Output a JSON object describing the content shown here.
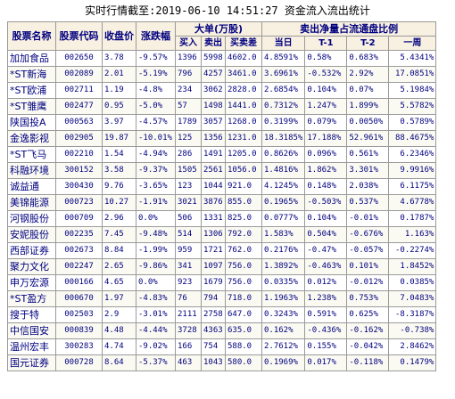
{
  "title": "实时行情截至:2019-06-10 14:51:27 资金流入流出统计",
  "headers": {
    "name": "股票名称",
    "code": "股票代码",
    "price": "收盘价",
    "change": "涨跌幅",
    "big_order_group": "大单(万股)",
    "buy": "买入",
    "sell": "卖出",
    "diff": "买卖差",
    "ratio_group": "卖出净量占流通盘比例",
    "today": "当日",
    "t1": "T-1",
    "t2": "T-2",
    "week": "一周"
  },
  "rows": [
    {
      "name": "加加食品",
      "code": "002650",
      "price": "3.78",
      "change": "-9.57%",
      "buy": "1396",
      "sell": "5998",
      "diff": "4602.0",
      "today": "4.8591%",
      "t1": "0.58%",
      "t2": "0.683%",
      "week": "5.4341%"
    },
    {
      "name": "*ST新海",
      "code": "002089",
      "price": "2.01",
      "change": "-5.19%",
      "buy": "796",
      "sell": "4257",
      "diff": "3461.0",
      "today": "3.6961%",
      "t1": "-0.532%",
      "t2": "2.92%",
      "week": "17.0851%"
    },
    {
      "name": "*ST欧浦",
      "code": "002711",
      "price": "1.19",
      "change": "-4.8%",
      "buy": "234",
      "sell": "3062",
      "diff": "2828.0",
      "today": "2.6854%",
      "t1": "0.104%",
      "t2": "0.07%",
      "week": "5.1984%"
    },
    {
      "name": "*ST雏鹰",
      "code": "002477",
      "price": "0.95",
      "change": "-5.0%",
      "buy": "57",
      "sell": "1498",
      "diff": "1441.0",
      "today": "0.7312%",
      "t1": "1.247%",
      "t2": "1.899%",
      "week": "5.5782%"
    },
    {
      "name": "陕国投A",
      "code": "000563",
      "price": "3.97",
      "change": "-4.57%",
      "buy": "1789",
      "sell": "3057",
      "diff": "1268.0",
      "today": "0.3199%",
      "t1": "0.079%",
      "t2": "0.0050%",
      "week": "0.5789%"
    },
    {
      "name": "金逸影视",
      "code": "002905",
      "price": "19.87",
      "change": "-10.01%",
      "buy": "125",
      "sell": "1356",
      "diff": "1231.0",
      "today": "18.3185%",
      "t1": "17.188%",
      "t2": "52.961%",
      "week": "88.4675%"
    },
    {
      "name": "*ST飞马",
      "code": "002210",
      "price": "1.54",
      "change": "-4.94%",
      "buy": "286",
      "sell": "1491",
      "diff": "1205.0",
      "today": "0.8626%",
      "t1": "0.096%",
      "t2": "0.561%",
      "week": "6.2346%"
    },
    {
      "name": "科融环境",
      "code": "300152",
      "price": "3.58",
      "change": "-9.37%",
      "buy": "1505",
      "sell": "2561",
      "diff": "1056.0",
      "today": "1.4816%",
      "t1": "1.862%",
      "t2": "3.301%",
      "week": "9.9916%"
    },
    {
      "name": "诚益通",
      "code": "300430",
      "price": "9.76",
      "change": "-3.65%",
      "buy": "123",
      "sell": "1044",
      "diff": "921.0",
      "today": "4.1245%",
      "t1": "0.148%",
      "t2": "2.038%",
      "week": "6.1175%"
    },
    {
      "name": "美锦能源",
      "code": "000723",
      "price": "10.27",
      "change": "-1.91%",
      "buy": "3021",
      "sell": "3876",
      "diff": "855.0",
      "today": "0.1965%",
      "t1": "-0.503%",
      "t2": "0.537%",
      "week": "4.6778%"
    },
    {
      "name": "河钢股份",
      "code": "000709",
      "price": "2.96",
      "change": "0.0%",
      "buy": "506",
      "sell": "1331",
      "diff": "825.0",
      "today": "0.0777%",
      "t1": "0.104%",
      "t2": "-0.01%",
      "week": "0.1787%"
    },
    {
      "name": "安妮股份",
      "code": "002235",
      "price": "7.45",
      "change": "-9.48%",
      "buy": "514",
      "sell": "1306",
      "diff": "792.0",
      "today": "1.583%",
      "t1": "0.504%",
      "t2": "-0.676%",
      "week": "1.163%"
    },
    {
      "name": "西部证券",
      "code": "002673",
      "price": "8.84",
      "change": "-1.99%",
      "buy": "959",
      "sell": "1721",
      "diff": "762.0",
      "today": "0.2176%",
      "t1": "-0.47%",
      "t2": "-0.057%",
      "week": "-0.2274%"
    },
    {
      "name": "聚力文化",
      "code": "002247",
      "price": "2.65",
      "change": "-9.86%",
      "buy": "341",
      "sell": "1097",
      "diff": "756.0",
      "today": "1.3892%",
      "t1": "-0.463%",
      "t2": "0.101%",
      "week": "1.8452%"
    },
    {
      "name": "申万宏源",
      "code": "000166",
      "price": "4.65",
      "change": "0.0%",
      "buy": "923",
      "sell": "1679",
      "diff": "756.0",
      "today": "0.0335%",
      "t1": "0.012%",
      "t2": "-0.012%",
      "week": "0.0385%"
    },
    {
      "name": "*ST盈方",
      "code": "000670",
      "price": "1.97",
      "change": "-4.83%",
      "buy": "76",
      "sell": "794",
      "diff": "718.0",
      "today": "1.1963%",
      "t1": "1.238%",
      "t2": "0.753%",
      "week": "7.0483%"
    },
    {
      "name": "搜于特",
      "code": "002503",
      "price": "2.9",
      "change": "-3.01%",
      "buy": "2111",
      "sell": "2758",
      "diff": "647.0",
      "today": "0.3243%",
      "t1": "0.591%",
      "t2": "0.625%",
      "week": "-8.3187%"
    },
    {
      "name": "中信国安",
      "code": "000839",
      "price": "4.48",
      "change": "-4.44%",
      "buy": "3728",
      "sell": "4363",
      "diff": "635.0",
      "today": "0.162%",
      "t1": "-0.436%",
      "t2": "-0.162%",
      "week": "-0.738%"
    },
    {
      "name": "温州宏丰",
      "code": "300283",
      "price": "4.74",
      "change": "-9.02%",
      "buy": "166",
      "sell": "754",
      "diff": "588.0",
      "today": "2.7612%",
      "t1": "0.155%",
      "t2": "-0.042%",
      "week": "2.8462%"
    },
    {
      "name": "国元证券",
      "code": "000728",
      "price": "8.64",
      "change": "-5.37%",
      "buy": "463",
      "sell": "1043",
      "diff": "580.0",
      "today": "0.1969%",
      "t1": "0.017%",
      "t2": "-0.118%",
      "week": "0.1479%"
    }
  ]
}
